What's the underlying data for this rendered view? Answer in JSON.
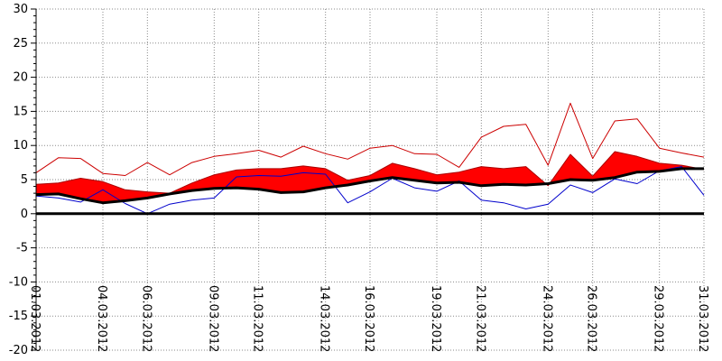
{
  "chart_data": {
    "type": "line",
    "title": "",
    "xlabel": "",
    "ylabel": "",
    "ylim": [
      -20,
      30
    ],
    "yticks": [
      30,
      25,
      20,
      15,
      10,
      5,
      0,
      -5,
      -10,
      -15,
      -20
    ],
    "ytick_labels": [
      "30",
      "25",
      "20",
      "15",
      "10",
      "5",
      "0",
      "-5",
      "-10",
      "-15",
      "-20"
    ],
    "xlim": [
      1,
      31
    ],
    "x": [
      1,
      2,
      3,
      4,
      5,
      6,
      7,
      8,
      9,
      10,
      11,
      12,
      13,
      14,
      15,
      16,
      17,
      18,
      19,
      20,
      21,
      22,
      23,
      24,
      25,
      26,
      27,
      28,
      29,
      30,
      31
    ],
    "xticks": [
      1,
      4,
      6,
      9,
      11,
      14,
      16,
      19,
      21,
      24,
      26,
      29,
      31
    ],
    "xtick_labels": [
      "01.03.2012",
      "04.03.2012",
      "06.03.2012",
      "09.03.2012",
      "11.03.2012",
      "14.03.2012",
      "16.03.2012",
      "19.03.2012",
      "21.03.2012",
      "24.03.2012",
      "26.03.2012",
      "29.03.2012",
      "31.03.2012"
    ],
    "grid": true,
    "grid_style": "dotted",
    "series": [
      {
        "role": "daily-max",
        "color": "#cc0000",
        "values": [
          6.0,
          8.2,
          8.1,
          5.9,
          5.6,
          7.5,
          5.7,
          7.5,
          8.4,
          8.8,
          9.3,
          8.3,
          9.9,
          8.8,
          8.0,
          9.6,
          10.0,
          8.8,
          8.7,
          6.8,
          11.2,
          12.8,
          13.1,
          7.1,
          16.2,
          8.1,
          13.6,
          13.9,
          9.6,
          8.9,
          8.3
        ]
      },
      {
        "role": "mean-upper",
        "color": "#ff0000",
        "values": [
          4.3,
          4.5,
          5.2,
          4.7,
          3.5,
          3.2,
          3.0,
          4.5,
          5.7,
          6.4,
          6.6,
          6.6,
          7.0,
          6.6,
          4.9,
          5.6,
          7.4,
          6.6,
          5.7,
          6.1,
          6.9,
          6.6,
          6.9,
          4.1,
          8.7,
          5.5,
          9.1,
          8.4,
          7.4,
          7.1,
          6.5
        ]
      },
      {
        "role": "normal",
        "color": "#000000",
        "values": [
          2.8,
          2.9,
          2.2,
          1.6,
          1.9,
          2.3,
          2.9,
          3.4,
          3.7,
          3.8,
          3.6,
          3.1,
          3.2,
          3.8,
          4.2,
          4.8,
          5.3,
          4.9,
          4.5,
          4.6,
          4.1,
          4.3,
          4.2,
          4.4,
          5.0,
          4.9,
          5.3,
          6.1,
          6.2,
          6.6,
          6.6
        ]
      },
      {
        "role": "daily-min",
        "color": "#0000cc",
        "values": [
          2.6,
          2.3,
          1.7,
          3.5,
          1.5,
          0.0,
          1.4,
          2.0,
          2.3,
          5.4,
          5.6,
          5.5,
          6.0,
          5.8,
          1.6,
          3.2,
          5.2,
          3.8,
          3.3,
          4.8,
          2.0,
          1.6,
          0.7,
          1.4,
          4.2,
          3.1,
          5.1,
          4.4,
          6.3,
          6.9,
          2.7
        ]
      }
    ]
  }
}
